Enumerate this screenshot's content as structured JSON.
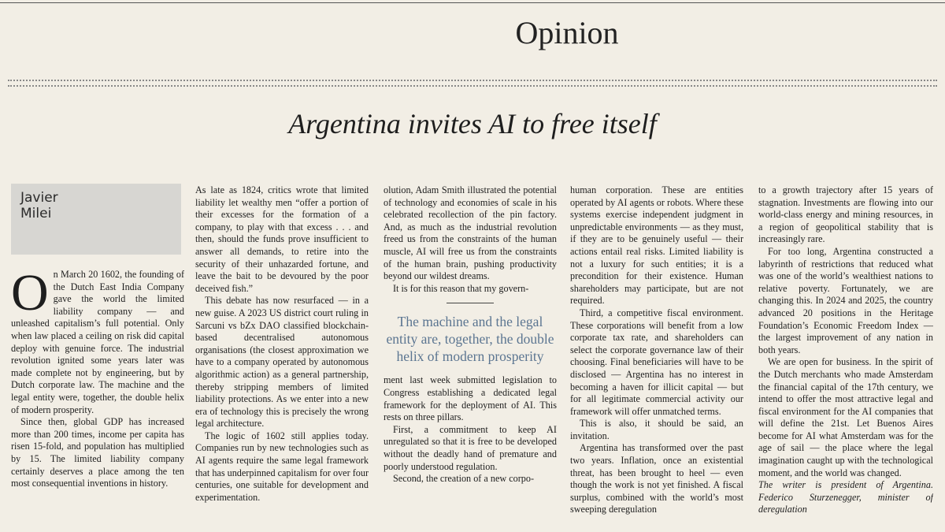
{
  "section": "Opinion",
  "headline": "Argentina invites AI to free itself",
  "author": {
    "lines": [
      "Javier",
      "Milei"
    ]
  },
  "drop_cap": "O",
  "columns": [
    {
      "paragraphs": [
        "n March 20 1602, the founding of the Dutch East India Company gave the world the limited liability company — and unleashed capitalism’s full potential. Only when law placed a ceiling on risk did capital deploy with genuine force. The industrial revolution ignited some years later was made complete not by engineering, but by Dutch corporate law. The machine and the legal entity were, together, the double helix of modern prosperity.",
        "Since then, global GDP has increased more than 200 times, income per capita has risen 15-fold, and population has multiplied by 15. The limited liability company certainly deserves a place among the ten most consequential inventions in history."
      ]
    },
    {
      "paragraphs": [
        "As late as 1824, critics wrote that limited liability let wealthy men “offer a portion of their excesses for the formation of a company, to play with that excess . . . and then, should the funds prove insufficient to answer all demands, to retire into the security of their unhazarded fortune, and leave the bait to be devoured by the poor deceived fish.”",
        "This debate has now resurfaced — in a new guise. A 2023 US district court ruling in Sarcuni vs bZx DAO classified blockchain-based decentralised autonomous organisations (the closest approximation we have to a company operated by autonomous algorithmic action) as a general partnership, thereby stripping members of limited liability protections. As we enter into a new era of technology this is precisely the wrong legal architecture.",
        "The logic of 1602 still applies today. Companies run by new technologies such as AI agents require the same legal framework that has underpinned capitalism for over four centuries, one suitable for development and experimentation."
      ]
    },
    {
      "paragraphs": [
        "olution, Adam Smith illustrated the potential of technology and economies of scale in his celebrated recollection of the pin factory. And, as much as the industrial revolution freed us from the constraints of the human muscle, AI will free us from the constraints of the human brain, pushing productivity beyond our wildest dreams.",
        "It is for this reason that my govern-",
        "ment last week submitted legislation to Congress establishing a dedicated legal framework for the deployment of AI. This rests on three pillars.",
        "First, a commitment to keep AI unregulated so that it is free to be developed without the deadly hand of premature and poorly understood regulation.",
        "Second, the creation of a new corpo-"
      ]
    },
    {
      "paragraphs": [
        "human corporation. These are entities operated by AI agents or robots. Where these systems exercise independent judgment in unpredictable environments — as they must, if they are to be genuinely useful — their actions entail real risks. Limited liability is not a luxury for such entities; it is a precondition for their existence. Human shareholders may participate, but are not required.",
        "Third, a competitive fiscal environment. These corporations will benefit from a low corporate tax rate, and shareholders can select the corporate governance law of their choosing. Final beneficiaries will have to be disclosed — Argentina has no interest in becoming a haven for illicit capital — but for all legitimate commercial activity our framework will offer unmatched terms.",
        "This is also, it should be said, an invitation.",
        "Argentina has transformed over the past two years. Inflation, once an existential threat, has been brought to heel — even though the work is not yet finished. A fiscal surplus, combined with the world’s most sweeping deregulation"
      ]
    },
    {
      "paragraphs": [
        "to a growth trajectory after 15 years of stagnation. Investments are flowing into our world-class energy and mining resources, in a region of geopolitical stability that is increasingly rare.",
        "For too long, Argentina constructed a labyrinth of restrictions that reduced what was one of the world’s wealthiest nations to relative poverty. Fortunately, we are changing this. In 2024 and 2025, the country advanced 20 positions in the Heritage Foundation’s Economic Freedom Index — the largest improvement of any nation in both years.",
        "We are open for business. In the spirit of the Dutch merchants who made Amsterdam the financial capital of the 17th century, we intend to offer the most attractive legal and fiscal environment for the AI companies that will define the 21st. Let Buenos Aires become for AI what Amsterdam was for the age of sail — the place where the legal imagination caught up with the technological moment, and the world was changed."
      ]
    }
  ],
  "pull_quote": "The machine and the legal entity are, together, the double helix of modern prosperity",
  "footer": "The writer is president of Argentina. Federico Sturzenegger, minister of deregulation"
}
